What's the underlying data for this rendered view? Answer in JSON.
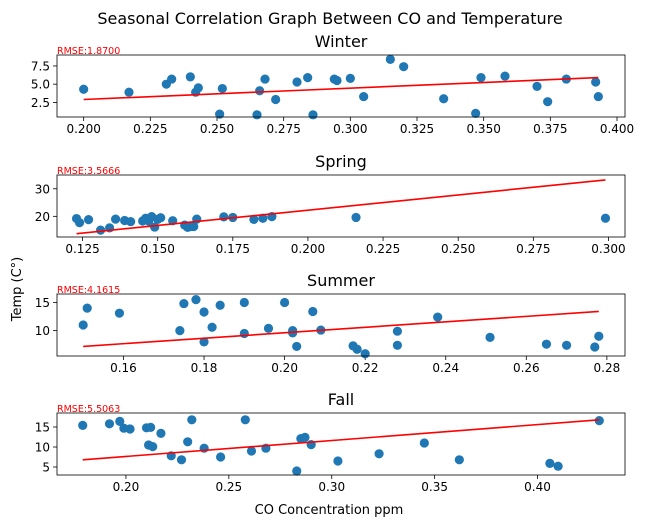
{
  "figure": {
    "suptitle": "Seasonal Correlation Graph Between CO and Temperature",
    "ylabel": "Temp (C°)",
    "xlabel": "CO Concentration ppm",
    "point_color": "#1f77b4",
    "fit_color": "#ff0000",
    "rmse_color": "#ff0000"
  },
  "chart_data": [
    {
      "type": "scatter",
      "title": "Winter",
      "annotation": "RMSE:1.8700",
      "xlim": [
        0.19,
        0.403
      ],
      "ylim": [
        0.5,
        9.0
      ],
      "xticks": [
        0.2,
        0.225,
        0.25,
        0.275,
        0.3,
        0.325,
        0.35,
        0.375,
        0.4
      ],
      "xtick_labels": [
        "0.200",
        "0.225",
        "0.250",
        "0.275",
        "0.300",
        "0.325",
        "0.350",
        "0.375",
        "0.400"
      ],
      "yticks": [
        2.5,
        5.0,
        7.5
      ],
      "ytick_labels": [
        "2.5",
        "5.0",
        "7.5"
      ],
      "fit": {
        "x": [
          0.2,
          0.393
        ],
        "y": [
          2.9,
          5.9
        ]
      },
      "points": [
        [
          0.2,
          4.3
        ],
        [
          0.217,
          3.9
        ],
        [
          0.231,
          5.0
        ],
        [
          0.233,
          5.7
        ],
        [
          0.24,
          6.0
        ],
        [
          0.242,
          3.9
        ],
        [
          0.243,
          4.5
        ],
        [
          0.251,
          0.9
        ],
        [
          0.252,
          4.4
        ],
        [
          0.265,
          0.8
        ],
        [
          0.266,
          4.1
        ],
        [
          0.268,
          5.7
        ],
        [
          0.272,
          2.9
        ],
        [
          0.28,
          5.3
        ],
        [
          0.284,
          5.9
        ],
        [
          0.286,
          0.8
        ],
        [
          0.294,
          5.7
        ],
        [
          0.295,
          5.5
        ],
        [
          0.3,
          5.8
        ],
        [
          0.305,
          3.3
        ],
        [
          0.315,
          8.4
        ],
        [
          0.32,
          7.4
        ],
        [
          0.335,
          3.0
        ],
        [
          0.347,
          1.0
        ],
        [
          0.349,
          5.9
        ],
        [
          0.358,
          6.1
        ],
        [
          0.37,
          4.7
        ],
        [
          0.374,
          2.6
        ],
        [
          0.381,
          5.7
        ],
        [
          0.392,
          5.3
        ],
        [
          0.393,
          3.3
        ]
      ]
    },
    {
      "type": "scatter",
      "title": "Spring",
      "annotation": "RMSE:3.5666",
      "xlim": [
        0.1165,
        0.3055
      ],
      "ylim": [
        12.5,
        35.0
      ],
      "xticks": [
        0.125,
        0.15,
        0.175,
        0.2,
        0.225,
        0.25,
        0.275,
        0.3
      ],
      "xtick_labels": [
        "0.125",
        "0.150",
        "0.175",
        "0.200",
        "0.225",
        "0.250",
        "0.275",
        "0.300"
      ],
      "yticks": [
        20,
        30
      ],
      "ytick_labels": [
        "20",
        "30"
      ],
      "fit": {
        "x": [
          0.123,
          0.299
        ],
        "y": [
          13.7,
          33.2
        ]
      },
      "points": [
        [
          0.123,
          19.2
        ],
        [
          0.124,
          17.7
        ],
        [
          0.127,
          18.8
        ],
        [
          0.131,
          15.0
        ],
        [
          0.134,
          15.8
        ],
        [
          0.136,
          19.0
        ],
        [
          0.139,
          18.5
        ],
        [
          0.141,
          18.1
        ],
        [
          0.145,
          18.3
        ],
        [
          0.146,
          19.3
        ],
        [
          0.147,
          18.3
        ],
        [
          0.148,
          19.9
        ],
        [
          0.149,
          16.1
        ],
        [
          0.15,
          18.9
        ],
        [
          0.151,
          19.5
        ],
        [
          0.155,
          18.4
        ],
        [
          0.159,
          16.8
        ],
        [
          0.16,
          16.0
        ],
        [
          0.161,
          16.3
        ],
        [
          0.162,
          16.3
        ],
        [
          0.163,
          19.0
        ],
        [
          0.172,
          19.8
        ],
        [
          0.175,
          19.6
        ],
        [
          0.182,
          18.9
        ],
        [
          0.185,
          19.3
        ],
        [
          0.188,
          19.9
        ],
        [
          0.216,
          19.6
        ],
        [
          0.299,
          19.3
        ]
      ]
    },
    {
      "type": "scatter",
      "title": "Summer",
      "annotation": "RMSE:4.1615",
      "xlim": [
        0.1435,
        0.2845
      ],
      "ylim": [
        5.5,
        16.5
      ],
      "xticks": [
        0.16,
        0.18,
        0.2,
        0.22,
        0.24,
        0.26,
        0.28
      ],
      "xtick_labels": [
        "0.16",
        "0.18",
        "0.20",
        "0.22",
        "0.24",
        "0.26",
        "0.28"
      ],
      "yticks": [
        10,
        15
      ],
      "ytick_labels": [
        "10",
        "15"
      ],
      "fit": {
        "x": [
          0.15,
          0.278
        ],
        "y": [
          7.2,
          13.4
        ]
      },
      "points": [
        [
          0.15,
          11.0
        ],
        [
          0.151,
          14.0
        ],
        [
          0.159,
          13.1
        ],
        [
          0.174,
          10.0
        ],
        [
          0.175,
          14.8
        ],
        [
          0.178,
          15.5
        ],
        [
          0.18,
          13.3
        ],
        [
          0.18,
          8.0
        ],
        [
          0.182,
          10.6
        ],
        [
          0.184,
          14.5
        ],
        [
          0.19,
          9.5
        ],
        [
          0.19,
          15.0
        ],
        [
          0.196,
          10.4
        ],
        [
          0.2,
          15.0
        ],
        [
          0.202,
          10.0
        ],
        [
          0.202,
          9.6
        ],
        [
          0.203,
          7.2
        ],
        [
          0.207,
          13.4
        ],
        [
          0.209,
          10.1
        ],
        [
          0.217,
          7.3
        ],
        [
          0.218,
          6.7
        ],
        [
          0.22,
          5.9
        ],
        [
          0.228,
          9.9
        ],
        [
          0.228,
          7.4
        ],
        [
          0.238,
          12.4
        ],
        [
          0.251,
          8.8
        ],
        [
          0.265,
          7.6
        ],
        [
          0.27,
          7.4
        ],
        [
          0.277,
          7.1
        ],
        [
          0.278,
          9.0
        ]
      ]
    },
    {
      "type": "scatter",
      "title": "Fall",
      "annotation": "RMSE:5.5063",
      "xlim": [
        0.1665,
        0.4425
      ],
      "ylim": [
        3.0,
        18.5
      ],
      "xticks": [
        0.2,
        0.25,
        0.3,
        0.35,
        0.4
      ],
      "xtick_labels": [
        "0.20",
        "0.25",
        "0.30",
        "0.35",
        "0.40"
      ],
      "yticks": [
        5,
        10,
        15
      ],
      "ytick_labels": [
        "5",
        "10",
        "15"
      ],
      "fit": {
        "x": [
          0.179,
          0.43
        ],
        "y": [
          6.8,
          16.8
        ]
      },
      "points": [
        [
          0.179,
          15.4
        ],
        [
          0.192,
          15.8
        ],
        [
          0.197,
          16.4
        ],
        [
          0.199,
          14.7
        ],
        [
          0.202,
          14.5
        ],
        [
          0.21,
          14.8
        ],
        [
          0.211,
          10.5
        ],
        [
          0.212,
          14.9
        ],
        [
          0.213,
          10.1
        ],
        [
          0.217,
          13.4
        ],
        [
          0.222,
          7.8
        ],
        [
          0.227,
          6.8
        ],
        [
          0.23,
          11.3
        ],
        [
          0.232,
          16.8
        ],
        [
          0.238,
          9.7
        ],
        [
          0.246,
          7.5
        ],
        [
          0.258,
          16.8
        ],
        [
          0.261,
          9.0
        ],
        [
          0.268,
          9.7
        ],
        [
          0.283,
          4.0
        ],
        [
          0.285,
          12.1
        ],
        [
          0.287,
          12.4
        ],
        [
          0.29,
          10.6
        ],
        [
          0.303,
          6.5
        ],
        [
          0.323,
          8.3
        ],
        [
          0.345,
          11.0
        ],
        [
          0.362,
          6.8
        ],
        [
          0.406,
          5.9
        ],
        [
          0.41,
          5.2
        ],
        [
          0.43,
          16.6
        ]
      ]
    }
  ]
}
